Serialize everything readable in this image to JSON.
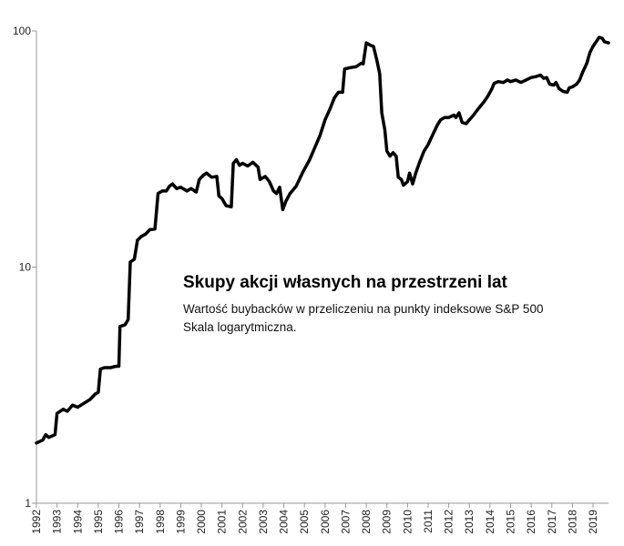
{
  "chart_data": {
    "type": "line",
    "title": "Skupy akcji własnych na przestrzeni lat",
    "subtitle_lines": [
      "Wartość buybacków w przeliczeniu na punkty indeksowe S&P 500",
      "Skala logarytmiczna."
    ],
    "y_scale": "log",
    "ylim": [
      1,
      100
    ],
    "y_ticks": [
      1,
      10,
      100
    ],
    "x_ticks": [
      1992,
      1993,
      1994,
      1995,
      1996,
      1997,
      1998,
      1999,
      2000,
      2001,
      2002,
      2003,
      2004,
      2005,
      2006,
      2007,
      2008,
      2009,
      2010,
      2011,
      2012,
      2013,
      2014,
      2015,
      2016,
      2017,
      2018,
      2019
    ],
    "xlim": [
      1992,
      2019.75
    ],
    "series": [
      {
        "color": "#000000",
        "points": [
          [
            1992.0,
            1.8
          ],
          [
            1992.3,
            1.85
          ],
          [
            1992.45,
            1.95
          ],
          [
            1992.6,
            1.9
          ],
          [
            1992.9,
            1.95
          ],
          [
            1993.0,
            2.4
          ],
          [
            1993.3,
            2.5
          ],
          [
            1993.5,
            2.45
          ],
          [
            1993.75,
            2.6
          ],
          [
            1994.0,
            2.55
          ],
          [
            1994.3,
            2.65
          ],
          [
            1994.6,
            2.75
          ],
          [
            1994.85,
            2.9
          ],
          [
            1995.0,
            2.95
          ],
          [
            1995.1,
            3.7
          ],
          [
            1995.3,
            3.75
          ],
          [
            1995.6,
            3.75
          ],
          [
            1995.85,
            3.8
          ],
          [
            1996.0,
            3.8
          ],
          [
            1996.05,
            5.6
          ],
          [
            1996.3,
            5.7
          ],
          [
            1996.45,
            6.0
          ],
          [
            1996.55,
            10.5
          ],
          [
            1996.75,
            10.8
          ],
          [
            1996.9,
            13.0
          ],
          [
            1997.1,
            13.5
          ],
          [
            1997.3,
            13.8
          ],
          [
            1997.5,
            14.4
          ],
          [
            1997.75,
            14.5
          ],
          [
            1997.9,
            20.5
          ],
          [
            1998.1,
            21.0
          ],
          [
            1998.3,
            21.0
          ],
          [
            1998.45,
            22.0
          ],
          [
            1998.6,
            22.5
          ],
          [
            1998.8,
            21.5
          ],
          [
            1999.0,
            21.8
          ],
          [
            1999.3,
            21.0
          ],
          [
            1999.5,
            21.5
          ],
          [
            1999.75,
            20.8
          ],
          [
            1999.9,
            23.5
          ],
          [
            2000.1,
            24.5
          ],
          [
            2000.25,
            25.0
          ],
          [
            2000.5,
            24.0
          ],
          [
            2000.75,
            24.2
          ],
          [
            2000.85,
            20.0
          ],
          [
            2001.0,
            19.5
          ],
          [
            2001.2,
            18.2
          ],
          [
            2001.45,
            18.0
          ],
          [
            2001.55,
            27.5
          ],
          [
            2001.7,
            28.5
          ],
          [
            2001.85,
            27.0
          ],
          [
            2002.0,
            27.5
          ],
          [
            2002.25,
            26.8
          ],
          [
            2002.5,
            27.8
          ],
          [
            2002.75,
            26.5
          ],
          [
            2002.85,
            23.5
          ],
          [
            2003.1,
            24.2
          ],
          [
            2003.3,
            23.0
          ],
          [
            2003.5,
            21.0
          ],
          [
            2003.65,
            20.5
          ],
          [
            2003.8,
            21.8
          ],
          [
            2003.95,
            17.5
          ],
          [
            2004.1,
            19.0
          ],
          [
            2004.3,
            20.5
          ],
          [
            2004.6,
            22.0
          ],
          [
            2004.9,
            25.0
          ],
          [
            2005.25,
            28.5
          ],
          [
            2005.5,
            32.0
          ],
          [
            2005.75,
            36.0
          ],
          [
            2006.0,
            42.0
          ],
          [
            2006.25,
            47.0
          ],
          [
            2006.45,
            52.0
          ],
          [
            2006.65,
            55.0
          ],
          [
            2006.85,
            55.0
          ],
          [
            2006.95,
            69.0
          ],
          [
            2007.25,
            70.0
          ],
          [
            2007.5,
            70.5
          ],
          [
            2007.75,
            73.0
          ],
          [
            2007.85,
            72.5
          ],
          [
            2008.0,
            89.0
          ],
          [
            2008.2,
            87.0
          ],
          [
            2008.35,
            86.0
          ],
          [
            2008.5,
            76.0
          ],
          [
            2008.65,
            66.0
          ],
          [
            2008.75,
            45.0
          ],
          [
            2008.9,
            38.0
          ],
          [
            2009.0,
            31.0
          ],
          [
            2009.15,
            29.5
          ],
          [
            2009.3,
            30.5
          ],
          [
            2009.45,
            29.5
          ],
          [
            2009.55,
            24.0
          ],
          [
            2009.7,
            23.5
          ],
          [
            2009.8,
            22.2
          ],
          [
            2010.0,
            23.0
          ],
          [
            2010.1,
            25.0
          ],
          [
            2010.25,
            22.5
          ],
          [
            2010.4,
            25.0
          ],
          [
            2010.6,
            28.0
          ],
          [
            2010.8,
            31.0
          ],
          [
            2011.0,
            33.0
          ],
          [
            2011.2,
            36.0
          ],
          [
            2011.45,
            40.0
          ],
          [
            2011.6,
            42.0
          ],
          [
            2011.8,
            43.0
          ],
          [
            2012.0,
            43.0
          ],
          [
            2012.25,
            44.0
          ],
          [
            2012.35,
            43.0
          ],
          [
            2012.5,
            45.0
          ],
          [
            2012.65,
            41.0
          ],
          [
            2012.85,
            40.5
          ],
          [
            2013.0,
            42.0
          ],
          [
            2013.2,
            44.0
          ],
          [
            2013.45,
            47.0
          ],
          [
            2013.7,
            50.0
          ],
          [
            2013.9,
            53.0
          ],
          [
            2014.1,
            57.0
          ],
          [
            2014.2,
            60.0
          ],
          [
            2014.4,
            61.0
          ],
          [
            2014.65,
            60.5
          ],
          [
            2014.85,
            62.0
          ],
          [
            2015.0,
            61.0
          ],
          [
            2015.25,
            62.0
          ],
          [
            2015.5,
            60.5
          ],
          [
            2015.75,
            62.0
          ],
          [
            2016.0,
            63.5
          ],
          [
            2016.2,
            64.0
          ],
          [
            2016.45,
            65.0
          ],
          [
            2016.6,
            63.0
          ],
          [
            2016.75,
            63.5
          ],
          [
            2016.9,
            59.5
          ],
          [
            2017.1,
            59.0
          ],
          [
            2017.2,
            60.5
          ],
          [
            2017.35,
            57.0
          ],
          [
            2017.55,
            55.5
          ],
          [
            2017.75,
            55.0
          ],
          [
            2017.85,
            57.5
          ],
          [
            2018.0,
            58.0
          ],
          [
            2018.2,
            59.5
          ],
          [
            2018.35,
            62.0
          ],
          [
            2018.5,
            67.0
          ],
          [
            2018.7,
            73.0
          ],
          [
            2018.85,
            81.0
          ],
          [
            2019.0,
            86.0
          ],
          [
            2019.15,
            90.0
          ],
          [
            2019.3,
            94.0
          ],
          [
            2019.45,
            93.0
          ],
          [
            2019.55,
            90.0
          ],
          [
            2019.75,
            89.0
          ]
        ]
      }
    ]
  }
}
